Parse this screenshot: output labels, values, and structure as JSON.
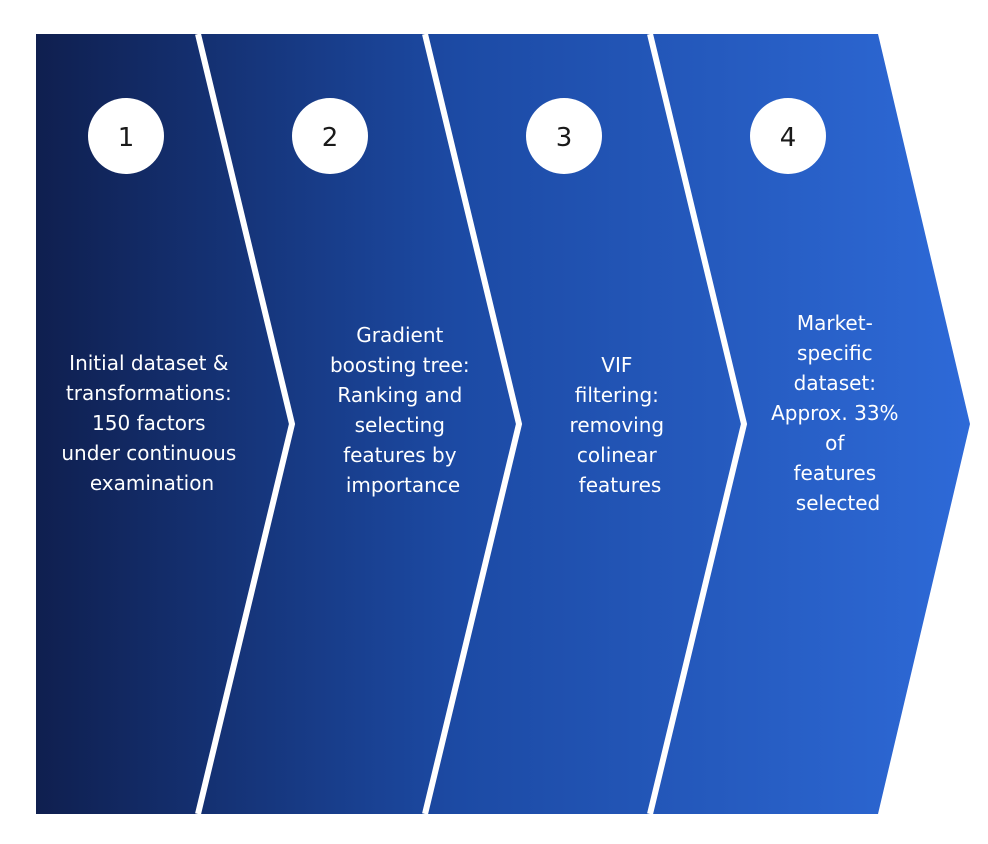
{
  "steps": [
    {
      "number": "1",
      "lines": [
        "Initial dataset &",
        "transformations:",
        "150 factors",
        "under continuous",
        "examination"
      ]
    },
    {
      "number": "2",
      "lines": [
        "Gradient",
        "boosting tree:",
        "Ranking and",
        "selecting",
        "features by",
        "importance"
      ]
    },
    {
      "number": "3",
      "lines": [
        "VIF",
        "filtering:",
        "removing",
        "colinear",
        "features"
      ]
    },
    {
      "number": "4",
      "lines": [
        "Market-",
        "specific",
        "dataset:",
        "Approx. 33%",
        "of",
        "features",
        "selected"
      ]
    }
  ],
  "colors": {
    "gradient_start": "#0f1f4f",
    "gradient_mid": "#1c4aa4",
    "gradient_end": "#2e6ad8",
    "divider": "#ffffff",
    "badge_fill": "#ffffff"
  }
}
